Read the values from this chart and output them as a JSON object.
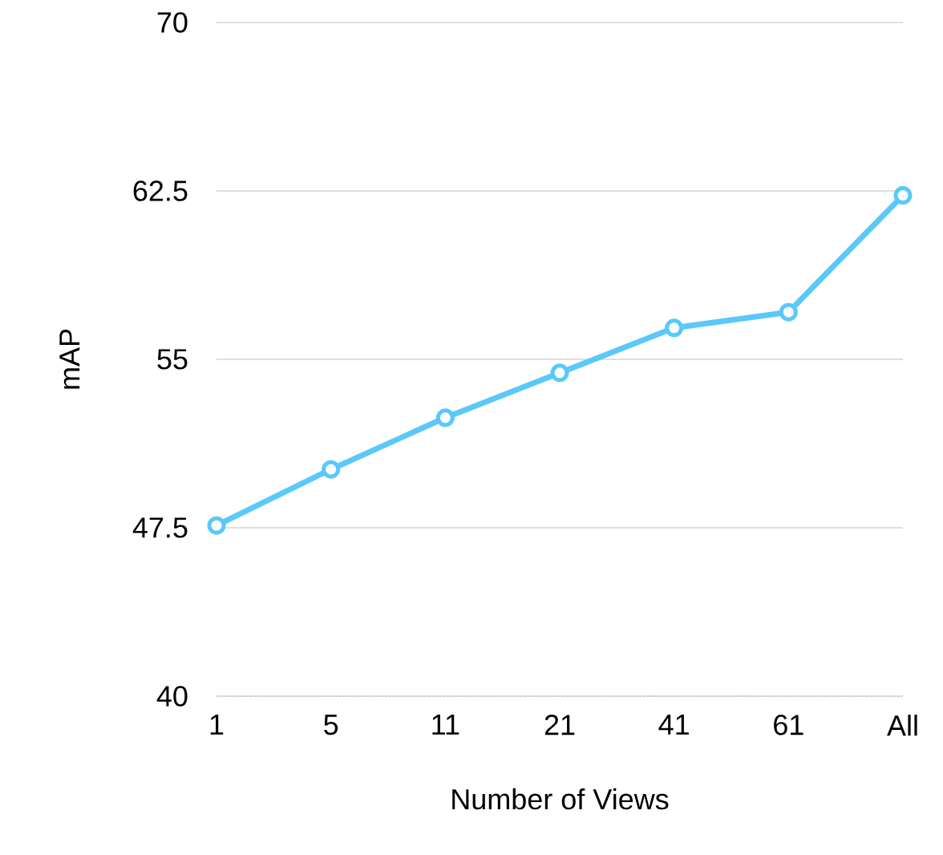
{
  "chart_data": {
    "type": "line",
    "xlabel": "Number of Views",
    "ylabel": "mAP",
    "categories": [
      "1",
      "5",
      "11",
      "21",
      "41",
      "61",
      "All"
    ],
    "series": [
      {
        "color": "#5ac8fa",
        "values": [
          47.6,
          50.1,
          52.4,
          54.4,
          56.4,
          57.1,
          62.3
        ]
      }
    ],
    "ylim": [
      40,
      70
    ],
    "yticks": [
      40,
      47.5,
      55,
      62.5,
      70
    ],
    "grid": "y",
    "marker": "circle",
    "line_style": "solid"
  }
}
